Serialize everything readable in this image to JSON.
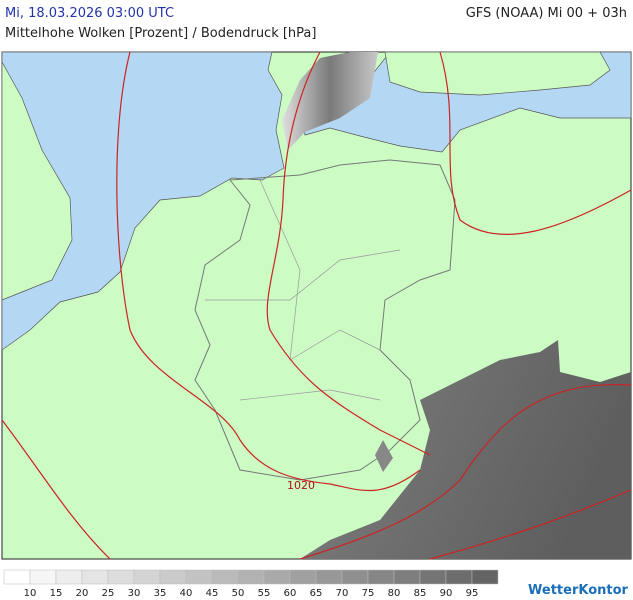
{
  "header": {
    "date": "Mi, 18.03.2026 03:00 UTC",
    "model": "GFS (NOAA) Mi 00 + 03h",
    "title": "Mittelhohe Wolken [Prozent] / Bodendruck [hPa]"
  },
  "map": {
    "isobar_label": "1020"
  },
  "legend": {
    "ticks": [
      10,
      15,
      20,
      25,
      30,
      35,
      40,
      45,
      50,
      55,
      60,
      65,
      70,
      75,
      80,
      85,
      90,
      95
    ]
  },
  "logo": "WetterKontor"
}
